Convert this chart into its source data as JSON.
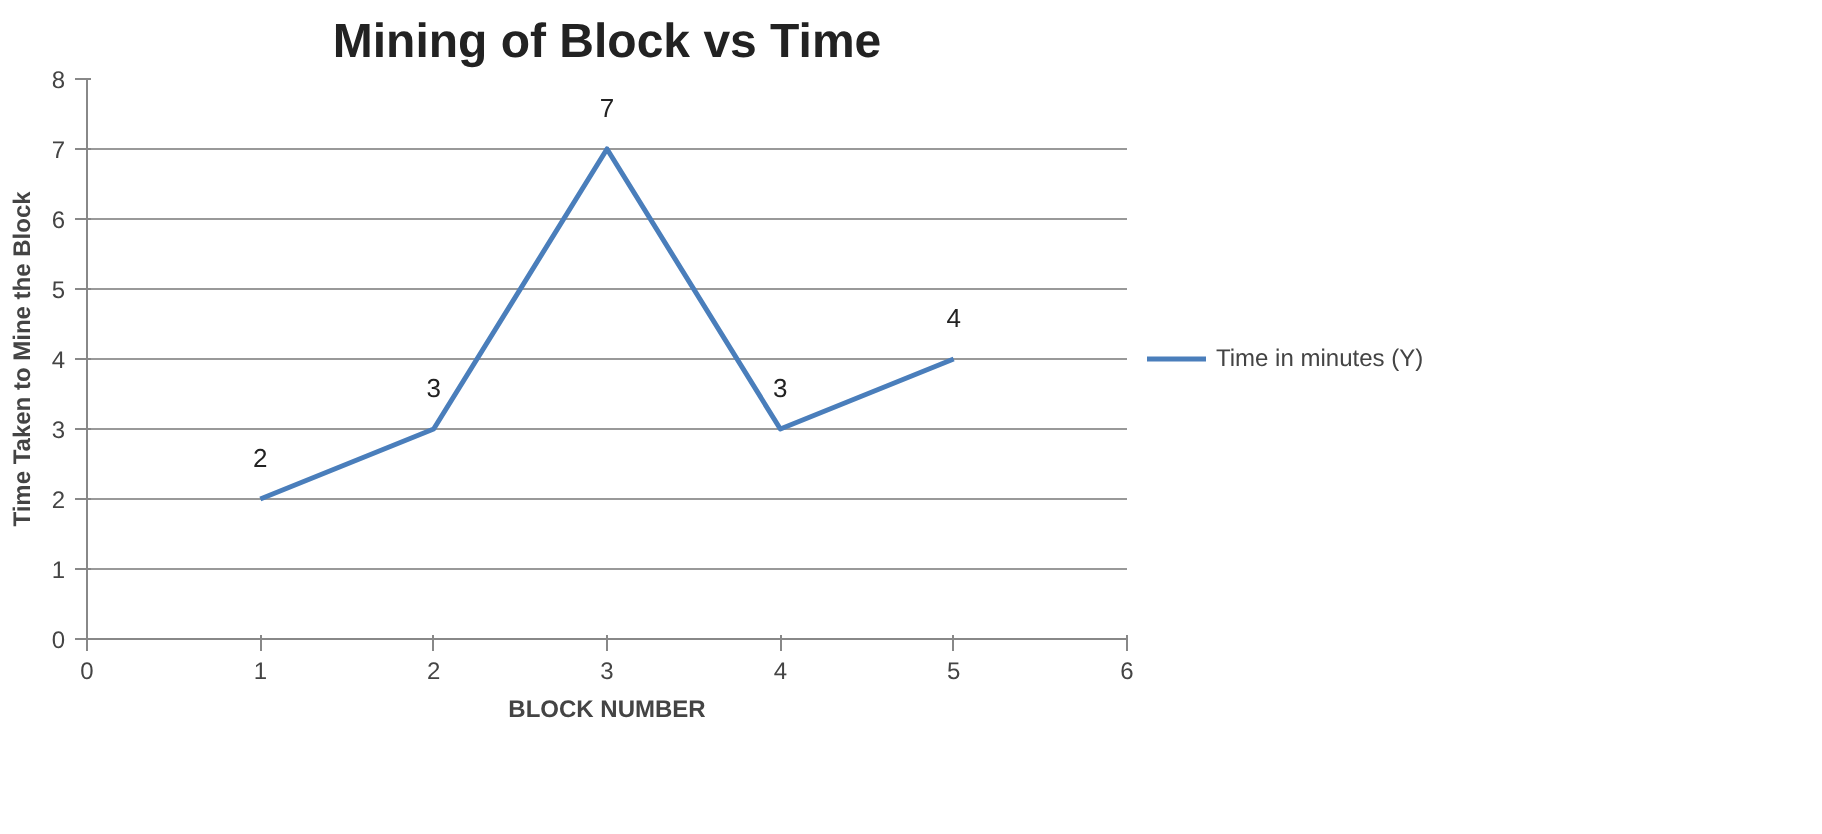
{
  "chart_data": {
    "type": "line",
    "title": "Mining of Block vs Time",
    "xlabel": "BLOCK NUMBER",
    "ylabel": "Time Taken to Mine the Block",
    "x": [
      1,
      2,
      3,
      4,
      5
    ],
    "series": [
      {
        "name": "Time in minutes (Y)",
        "color": "#4a7ebb",
        "values": [
          2,
          3,
          7,
          3,
          4
        ]
      }
    ],
    "xlim": [
      0,
      6
    ],
    "xticks": [
      0,
      1,
      2,
      3,
      4,
      5,
      6
    ],
    "ylim": [
      0,
      8
    ],
    "yticks": [
      0,
      1,
      2,
      3,
      4,
      5,
      6,
      7,
      8
    ],
    "grid": "y",
    "legend": "right",
    "data_labels": true,
    "marker": "none",
    "line_style": "solid"
  }
}
